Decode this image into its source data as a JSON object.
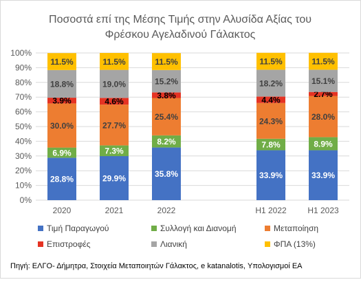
{
  "chart_data": {
    "type": "bar",
    "stacked": true,
    "percent": true,
    "title": "Ποσοστά επί της Μέσης Τιμής στην Αλυσίδα Αξίας του Φρέσκου Αγελαδινού Γάλακτος",
    "title_lines": [
      "Ποσοστά επί της Μέσης Τιμής στην Αλυσίδα Αξίας του",
      "Φρέσκου Αγελαδινού Γάλακτος"
    ],
    "categories": [
      "2020",
      "2021",
      "2022",
      "",
      "H1 2022",
      "H1 2023"
    ],
    "ylim": [
      0,
      100
    ],
    "yticks": [
      "0%",
      "10%",
      "20%",
      "30%",
      "40%",
      "50%",
      "60%",
      "70%",
      "80%",
      "90%",
      "100%"
    ],
    "grid": true,
    "legend_position": "bottom",
    "series": [
      {
        "name": "Τιμή Παραγωγού",
        "color": "#4472C4",
        "label_color": "#ffffff",
        "values": [
          28.8,
          29.9,
          35.8,
          null,
          33.9,
          33.9
        ],
        "labels": [
          "28.8%",
          "29.9%",
          "35.8%",
          "",
          "33.9%",
          "33.9%"
        ]
      },
      {
        "name": "Συλλογή και Διανομή",
        "color": "#70AD47",
        "label_color": "#ffffff",
        "values": [
          6.9,
          7.3,
          8.2,
          null,
          7.8,
          8.9
        ],
        "labels": [
          "6.9%",
          "7.3%",
          "8.2%",
          "",
          "7.8%",
          "8.9%"
        ]
      },
      {
        "name": "Μεταποίηση",
        "color": "#ED7D31",
        "label_color": "#404040",
        "values": [
          30.0,
          27.7,
          25.4,
          null,
          24.3,
          28.0
        ],
        "labels": [
          "30.0%",
          "27.7%",
          "25.4%",
          "",
          "24.3%",
          "28.0%"
        ]
      },
      {
        "name": "Επιστροφές",
        "color": "#E53323",
        "label_color": "#000000",
        "values": [
          3.9,
          4.6,
          3.8,
          null,
          4.4,
          2.7
        ],
        "labels": [
          "3.9%",
          "4.6%",
          "3.8%",
          "",
          "4.4%",
          "2.7%"
        ]
      },
      {
        "name": "Λιανική",
        "color": "#A5A5A5",
        "label_color": "#404040",
        "values": [
          18.8,
          19.0,
          15.2,
          null,
          18.2,
          15.1
        ],
        "labels": [
          "18.8%",
          "19.0%",
          "15.2%",
          "",
          "18.2%",
          "15.1%"
        ]
      },
      {
        "name": "ΦΠΑ (13%)",
        "color": "#FFC000",
        "label_color": "#404040",
        "values": [
          11.5,
          11.5,
          11.5,
          null,
          11.5,
          11.5
        ],
        "labels": [
          "11.5%",
          "11.5%",
          "11.5%",
          "",
          "11.5%",
          "11.5%"
        ]
      }
    ],
    "source": "Πηγή: ΕΛΓΟ- Δήμητρα, Στοιχεία Μεταποιητών Γάλακτος, e katanalotis, Υπολογισμοί ΕΑ"
  }
}
